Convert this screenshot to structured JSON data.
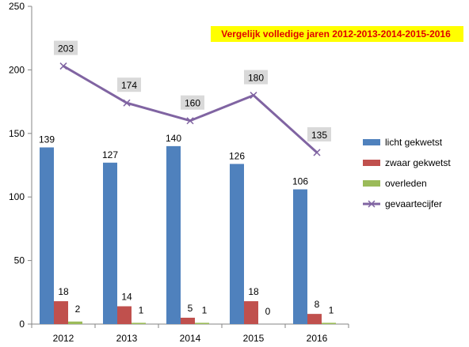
{
  "chart_data": {
    "type": "bar",
    "title": "Vergelijk volledige jaren 2012-2013-2014-2015-2016",
    "categories": [
      "2012",
      "2013",
      "2014",
      "2015",
      "2016"
    ],
    "ylim": [
      0,
      250
    ],
    "yticks": [
      "0",
      "50",
      "100",
      "150",
      "200",
      "250"
    ],
    "ytick_values": [
      0,
      50,
      100,
      150,
      200,
      250
    ],
    "grid": false,
    "legend_position": "right",
    "series": [
      {
        "name": "licht gekwetst",
        "kind": "bar",
        "color": "#4f81bd",
        "values": [
          139,
          127,
          140,
          126,
          106
        ]
      },
      {
        "name": "zwaar gekwetst",
        "kind": "bar",
        "color": "#c0504d",
        "values": [
          18,
          14,
          5,
          18,
          8
        ]
      },
      {
        "name": "overleden",
        "kind": "bar",
        "color": "#9bbb59",
        "values": [
          2,
          1,
          1,
          0,
          1
        ]
      },
      {
        "name": "gevaartecijfer",
        "kind": "line",
        "color": "#8064a2",
        "values": [
          203,
          174,
          160,
          180,
          135
        ]
      }
    ],
    "title_bg": "#ffff00",
    "title_color": "#e00000",
    "line_label_bg": "#d9d9d9"
  }
}
